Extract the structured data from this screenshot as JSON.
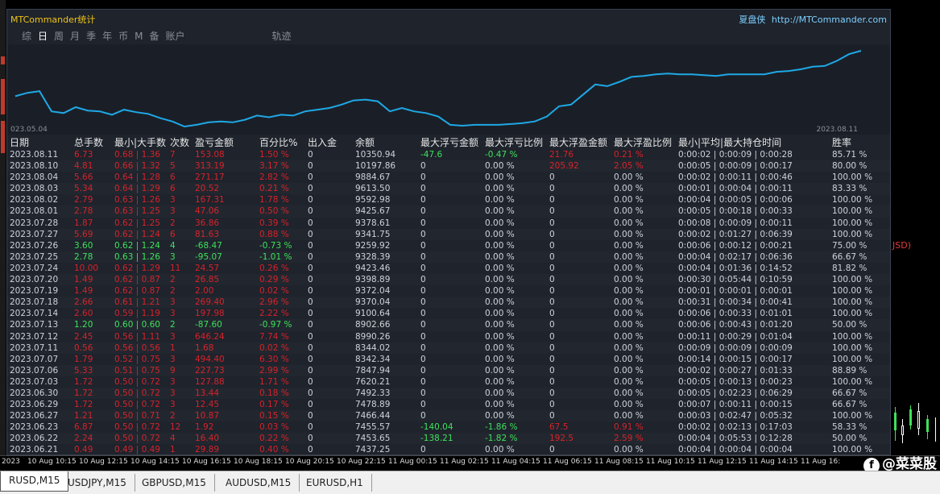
{
  "panel": {
    "title": "MTCommander统计",
    "brand": "夏盘侠",
    "url": "http://MTCommander.com"
  },
  "tabs": [
    "综",
    "日",
    "周",
    "月",
    "季",
    "年",
    "币",
    "M",
    "备",
    "账户",
    "轨迹"
  ],
  "active_tab": "日",
  "chart": {
    "start_label": "023.05.04",
    "end_label": "2023.08.11"
  },
  "chart_data": {
    "type": "line",
    "values": [
      10180,
      10220,
      10240,
      10000,
      9980,
      10050,
      10010,
      10000,
      9960,
      10020,
      9990,
      9970,
      9920,
      9880,
      9820,
      9840,
      9870,
      9880,
      9870,
      9900,
      9950,
      9930,
      9960,
      9950,
      10000,
      10020,
      10040,
      10080,
      10130,
      10140,
      10120,
      10000,
      10040,
      10000,
      9980,
      9940,
      9840,
      9830,
      9840,
      9840,
      9840,
      9850,
      9860,
      9880,
      9940,
      10060,
      10080,
      10200,
      10320,
      10300,
      10350,
      10410,
      10420,
      10440,
      10450,
      10440,
      10440,
      10430,
      10420,
      10440,
      10440,
      10440,
      10440,
      10470,
      10480,
      10500,
      10530,
      10540,
      10600,
      10680,
      10720
    ]
  },
  "table": {
    "headers": [
      "日期",
      "总手数",
      "最小|大手数",
      "次数",
      "盈亏金额",
      "百分比%",
      "出入金",
      "余额",
      "最大浮亏金额",
      "最大浮亏比例",
      "最大浮盈金额",
      "最大浮盈比例",
      "最小|平均|最大持仓时间",
      "胜率"
    ],
    "rows": [
      [
        "2023.08.11",
        "6.73",
        "0.68 | 1.36",
        "7",
        "153.08",
        "1.50 %",
        "0",
        "10350.94",
        "-47.6",
        "-0.47 %",
        "21.76",
        "0.21 %",
        "0:00:02 | 0:00:09 | 0:00:28",
        "85.71 %"
      ],
      [
        "2023.08.10",
        "4.81",
        "0.66 | 1.32",
        "5",
        "313.19",
        "3.17 %",
        "0",
        "10197.86",
        "0",
        "0.00 %",
        "205.92",
        "2.05 %",
        "0:00:05 | 0:00:09 | 0:00:17",
        "80.00 %"
      ],
      [
        "2023.08.04",
        "5.66",
        "0.64 | 1.28",
        "6",
        "271.17",
        "2.82 %",
        "0",
        "9884.67",
        "0",
        "0.00 %",
        "0",
        "0.00 %",
        "0:00:02 | 0:00:11 | 0:00:46",
        "100.00 %"
      ],
      [
        "2023.08.03",
        "5.34",
        "0.64 | 1.29",
        "6",
        "20.52",
        "0.21 %",
        "0",
        "9613.50",
        "0",
        "0.00 %",
        "0",
        "0.00 %",
        "0:00:01 | 0:00:04 | 0:00:11",
        "83.33 %"
      ],
      [
        "2023.08.02",
        "2.79",
        "0.63 | 1.26",
        "3",
        "167.31",
        "1.78 %",
        "0",
        "9592.98",
        "0",
        "0.00 %",
        "0",
        "0.00 %",
        "0:00:04 | 0:00:05 | 0:00:06",
        "100.00 %"
      ],
      [
        "2023.08.01",
        "2.78",
        "0.63 | 1.25",
        "3",
        "47.06",
        "0.50 %",
        "0",
        "9425.67",
        "0",
        "0.00 %",
        "0",
        "0.00 %",
        "0:00:05 | 0:00:18 | 0:00:33",
        "100.00 %"
      ],
      [
        "2023.07.28",
        "1.87",
        "0.62 | 1.25",
        "2",
        "36.86",
        "0.39 %",
        "0",
        "9378.61",
        "0",
        "0.00 %",
        "0",
        "0.00 %",
        "0:00:08 | 0:00:09 | 0:00:11",
        "100.00 %"
      ],
      [
        "2023.07.27",
        "5.69",
        "0.62 | 1.24",
        "6",
        "81.63",
        "0.88 %",
        "0",
        "9341.75",
        "0",
        "0.00 %",
        "0",
        "0.00 %",
        "0:00:02 | 0:01:27 | 0:06:39",
        "100.00 %"
      ],
      [
        "2023.07.26",
        "3.60",
        "0.62 | 1.24",
        "4",
        "-68.47",
        "-0.73 %",
        "0",
        "9259.92",
        "0",
        "0.00 %",
        "0",
        "0.00 %",
        "0:00:06 | 0:00:12 | 0:00:21",
        "75.00 %"
      ],
      [
        "2023.07.25",
        "2.78",
        "0.63 | 1.26",
        "3",
        "-95.07",
        "-1.01 %",
        "0",
        "9328.39",
        "0",
        "0.00 %",
        "0",
        "0.00 %",
        "0:00:04 | 0:02:17 | 0:06:36",
        "66.67 %"
      ],
      [
        "2023.07.24",
        "10.00",
        "0.62 | 1.29",
        "11",
        "24.57",
        "0.26 %",
        "0",
        "9423.46",
        "0",
        "0.00 %",
        "0",
        "0.00 %",
        "0:00:04 | 0:01:36 | 0:14:52",
        "81.82 %"
      ],
      [
        "2023.07.20",
        "1.49",
        "0.62 | 0.87",
        "2",
        "26.85",
        "0.29 %",
        "0",
        "9398.89",
        "0",
        "0.00 %",
        "0",
        "0.00 %",
        "0:00:30 | 0:05:44 | 0:10:59",
        "100.00 %"
      ],
      [
        "2023.07.19",
        "1.49",
        "0.62 | 0.87",
        "2",
        "2.00",
        "0.02 %",
        "0",
        "9372.04",
        "0",
        "0.00 %",
        "0",
        "0.00 %",
        "0:00:01 | 0:00:01 | 0:00:01",
        "100.00 %"
      ],
      [
        "2023.07.18",
        "2.66",
        "0.61 | 1.21",
        "3",
        "269.40",
        "2.96 %",
        "0",
        "9370.04",
        "0",
        "0.00 %",
        "0",
        "0.00 %",
        "0:00:31 | 0:00:34 | 0:00:41",
        "100.00 %"
      ],
      [
        "2023.07.14",
        "2.60",
        "0.59 | 1.19",
        "3",
        "197.98",
        "2.22 %",
        "0",
        "9100.64",
        "0",
        "0.00 %",
        "0",
        "0.00 %",
        "0:00:06 | 0:00:33 | 0:01:01",
        "100.00 %"
      ],
      [
        "2023.07.13",
        "1.20",
        "0.60 | 0.60",
        "2",
        "-87.60",
        "-0.97 %",
        "0",
        "8902.66",
        "0",
        "0.00 %",
        "0",
        "0.00 %",
        "0:00:06 | 0:00:43 | 0:01:20",
        "50.00 %"
      ],
      [
        "2023.07.12",
        "2.45",
        "0.56 | 1.11",
        "3",
        "646.24",
        "7.74 %",
        "0",
        "8990.26",
        "0",
        "0.00 %",
        "0",
        "0.00 %",
        "0:00:11 | 0:00:29 | 0:01:04",
        "100.00 %"
      ],
      [
        "2023.07.11",
        "0.56",
        "0.56 | 0.56",
        "1",
        "1.68",
        "0.02 %",
        "0",
        "8344.02",
        "0",
        "0.00 %",
        "0",
        "0.00 %",
        "0:00:09 | 0:00:09 | 0:00:09",
        "100.00 %"
      ],
      [
        "2023.07.07",
        "1.79",
        "0.52 | 0.75",
        "3",
        "494.40",
        "6.30 %",
        "0",
        "8342.34",
        "0",
        "0.00 %",
        "0",
        "0.00 %",
        "0:00:14 | 0:00:15 | 0:00:17",
        "100.00 %"
      ],
      [
        "2023.07.06",
        "5.33",
        "0.51 | 0.75",
        "9",
        "227.73",
        "2.99 %",
        "0",
        "7847.94",
        "0",
        "0.00 %",
        "0",
        "0.00 %",
        "0:00:02 | 0:00:27 | 0:01:33",
        "88.89 %"
      ],
      [
        "2023.07.03",
        "1.72",
        "0.50 | 0.72",
        "3",
        "127.88",
        "1.71 %",
        "0",
        "7620.21",
        "0",
        "0.00 %",
        "0",
        "0.00 %",
        "0:00:05 | 0:00:13 | 0:00:23",
        "100.00 %"
      ],
      [
        "2023.06.30",
        "1.72",
        "0.50 | 0.72",
        "3",
        "13.44",
        "0.18 %",
        "0",
        "7492.33",
        "0",
        "0.00 %",
        "0",
        "0.00 %",
        "0:00:05 | 0:02:23 | 0:06:29",
        "66.67 %"
      ],
      [
        "2023.06.29",
        "1.72",
        "0.50 | 0.72",
        "3",
        "12.45",
        "0.17 %",
        "0",
        "7478.89",
        "0",
        "0.00 %",
        "0",
        "0.00 %",
        "0:00:07 | 0:00:11 | 0:00:15",
        "66.67 %"
      ],
      [
        "2023.06.27",
        "1.21",
        "0.50 | 0.71",
        "2",
        "10.87",
        "0.15 %",
        "0",
        "7466.44",
        "0",
        "0.00 %",
        "0",
        "0.00 %",
        "0:00:03 | 0:02:47 | 0:05:32",
        "100.00 %"
      ],
      [
        "2023.06.23",
        "6.87",
        "0.50 | 0.72",
        "12",
        "1.92",
        "0.03 %",
        "0",
        "7455.57",
        "-140.04",
        "-1.86 %",
        "67.5",
        "0.91 %",
        "0:00:02 | 0:02:13 | 0:17:03",
        "58.33 %"
      ],
      [
        "2023.06.22",
        "2.24",
        "0.50 | 0.72",
        "4",
        "16.40",
        "0.22 %",
        "0",
        "7453.65",
        "-138.21",
        "-1.82 %",
        "192.5",
        "2.59 %",
        "0:00:04 | 0:05:53 | 0:12:28",
        "50.00 %"
      ],
      [
        "2023.06.21",
        "0.49",
        "0.49 | 0.49",
        "1",
        "29.89",
        "0.40 %",
        "0",
        "7437.25",
        "0",
        "0.00 %",
        "0",
        "0.00 %",
        "0:00:04 | 0:00:04 | 0:00:04",
        "100.00 %"
      ]
    ]
  },
  "right_label": "JSD)",
  "time_axis": [
    "2023",
    "10 Aug 10:15",
    "10 Aug 12:15",
    "10 Aug 14:15",
    "10 Aug 16:15",
    "10 Aug 18:15",
    "10 Aug 20:15",
    "10 Aug 22:15",
    "11 Aug 00:15",
    "11 Aug 02:15",
    "11 Aug 04:15",
    "11 Aug 06:15",
    "11 Aug 08:15",
    "11 Aug 10:15",
    "11 Aug 12:15",
    "11 Aug 14:15",
    "11 Aug 16:"
  ],
  "watermark": "@菜菜股",
  "symbol_tabs": [
    "RUSD,M15",
    "USDJPY,M15",
    "GBPUSD,M15",
    "AUDUSD,M15",
    "EURUSD,H1"
  ],
  "active_symbol": "RUSD,M15",
  "colors": {
    "line": "#1fa8e6",
    "loss": "#d6232a",
    "profit": "#3ee25a",
    "title": "#f0c419"
  }
}
